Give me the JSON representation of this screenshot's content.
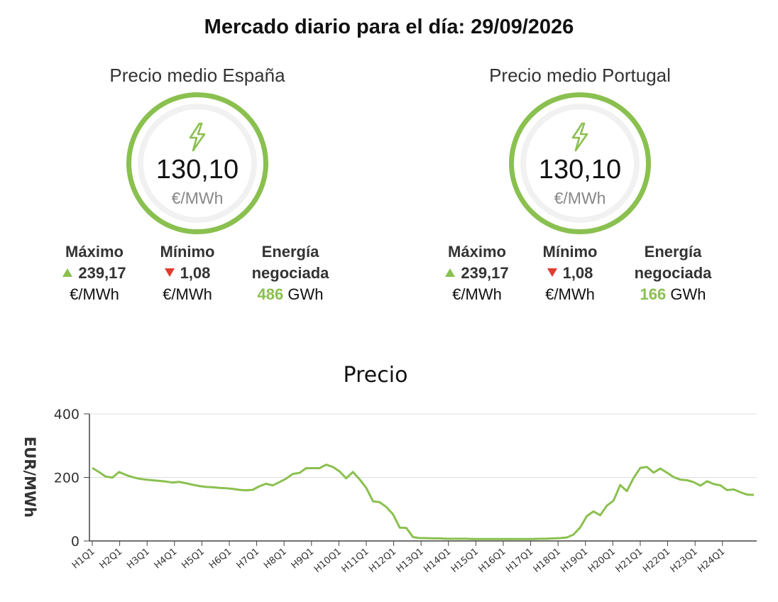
{
  "header": {
    "title": "Mercado diario para el día: 29/09/2026"
  },
  "colors": {
    "accent": "#8ac04f",
    "down": "#e23b2e",
    "unit_gray": "#888888",
    "line": "#8ac04f"
  },
  "spain": {
    "title": "Precio medio España",
    "icon": "lightning-bolt-icon",
    "value": "130,10",
    "unit": "€/MWh",
    "max_label": "Máximo",
    "max_value": "239,17",
    "max_unit": "€/MWh",
    "min_label": "Mínimo",
    "min_value": "1,08",
    "min_unit": "€/MWh",
    "energy_label_1": "Energía",
    "energy_label_2": "negociada",
    "energy_value": "486",
    "energy_unit": "GWh"
  },
  "portugal": {
    "title": "Precio medio Portugal",
    "icon": "lightning-bolt-icon",
    "value": "130,10",
    "unit": "€/MWh",
    "max_label": "Máximo",
    "max_value": "239,17",
    "max_unit": "€/MWh",
    "min_label": "Mínimo",
    "min_value": "1,08",
    "min_unit": "€/MWh",
    "energy_label_1": "Energía",
    "energy_label_2": "negociada",
    "energy_value": "166",
    "energy_unit": "GWh"
  },
  "chart_data": {
    "type": "line",
    "title": "Precio",
    "ylabel": "EUR/MWh",
    "xlabel": "",
    "ylim": [
      0,
      400
    ],
    "yticks": [
      0,
      200,
      400
    ],
    "grid": true,
    "x_tick_labels": [
      "H1Q1",
      "H2Q1",
      "H3Q1",
      "H4Q1",
      "H5Q1",
      "H6Q1",
      "H7Q1",
      "H8Q1",
      "H9Q1",
      "H10Q1",
      "H11Q1",
      "H12Q1",
      "H13Q1",
      "H14Q1",
      "H15Q1",
      "H16Q1",
      "H17Q1",
      "H18Q1",
      "H19Q1",
      "H20Q1",
      "H21Q1",
      "H22Q1",
      "H23Q1",
      "H24Q1"
    ],
    "series": [
      {
        "values": [
          230,
          217,
          203,
          199,
          217,
          208,
          201,
          196,
          193,
          191,
          189,
          187,
          184,
          186,
          182,
          177,
          173,
          170,
          169,
          167,
          166,
          164,
          161,
          159,
          161,
          172,
          180,
          175,
          185,
          196,
          211,
          214,
          229,
          229,
          229,
          240,
          233,
          219,
          197,
          217,
          194,
          167,
          125,
          122,
          107,
          84,
          42,
          41,
          12,
          9,
          9,
          8,
          8,
          7,
          7,
          7,
          7,
          6,
          6,
          6,
          6,
          6,
          6,
          6,
          6,
          6,
          6,
          7,
          7,
          8,
          9,
          11,
          20,
          42,
          78,
          93,
          81,
          111,
          127,
          176,
          157,
          198,
          230,
          233,
          215,
          228,
          215,
          201,
          193,
          191,
          185,
          174,
          188,
          179,
          175,
          160,
          162,
          153,
          146,
          145
        ]
      }
    ]
  }
}
